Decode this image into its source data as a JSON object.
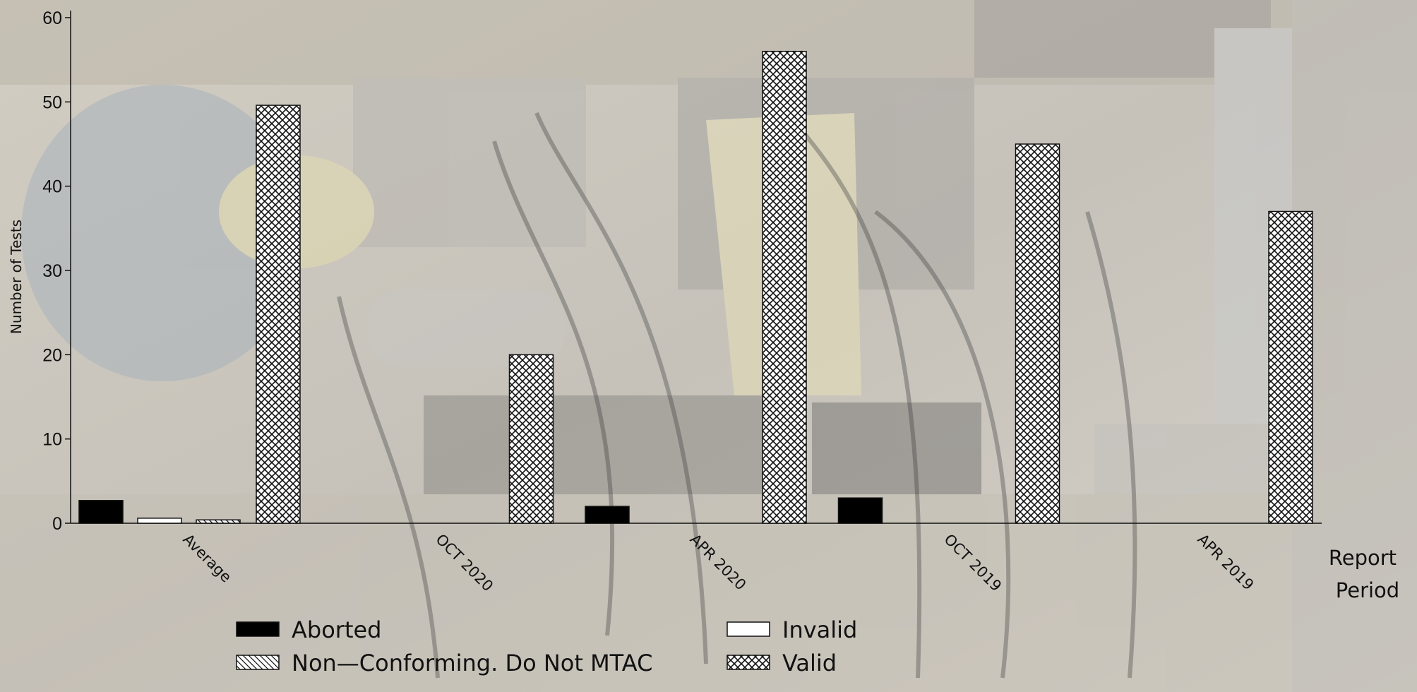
{
  "chart_data": {
    "type": "bar",
    "ylabel": "Number of Tests",
    "xlabel": "Report Period",
    "xlabel_lines": [
      "Report",
      "Period"
    ],
    "ylim": [
      0,
      60
    ],
    "yticks": [
      0,
      10,
      20,
      30,
      40,
      50,
      60
    ],
    "categories": [
      "Average",
      "OCT 2020",
      "APR 2020",
      "OCT 2019",
      "APR 2019"
    ],
    "series": [
      {
        "name": "Aborted",
        "values": [
          2.7,
          0,
          2,
          3,
          0
        ],
        "pattern": "solid",
        "color": "#000000"
      },
      {
        "name": "Invalid",
        "values": [
          0.6,
          0,
          0,
          0,
          0
        ],
        "pattern": "empty",
        "color": "#ffffff"
      },
      {
        "name": "Non—Conforming. Do Not MTAC",
        "values": [
          0.4,
          0,
          0,
          0,
          0
        ],
        "pattern": "diagonal",
        "color": "#ffffff"
      },
      {
        "name": "Valid",
        "values": [
          49.6,
          20,
          56,
          45,
          37
        ],
        "pattern": "crosshatch",
        "color": "#ffffff"
      }
    ],
    "legend_placement": "bottom",
    "grid": false,
    "background": "photograph of engine test stand (faded)"
  }
}
